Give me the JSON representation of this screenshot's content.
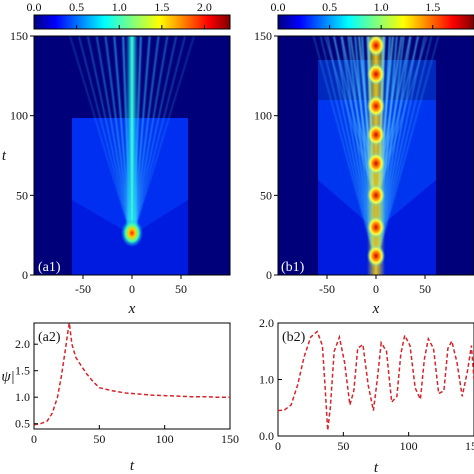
{
  "chart_data": [
    {
      "panel": "(a1)",
      "type": "heatmap",
      "xlabel": "x",
      "ylabel": "t",
      "xticks": [
        "-50",
        "0",
        "50"
      ],
      "yticks": [
        "0",
        "50",
        "100",
        "150"
      ],
      "xlim": [
        -100,
        100
      ],
      "ylim": [
        0,
        150
      ],
      "colorbar": {
        "ticks": [
          "0.0",
          "0.5",
          "1.0",
          "1.5",
          "2.0"
        ],
        "range": [
          0,
          2.3
        ],
        "colormap": "jet",
        "placement": "top"
      },
      "features": {
        "central_peak_t": 27,
        "central_peak_value": 2.3,
        "central_beam_value": 1.0,
        "background_value": 0.15,
        "fan_edge_x": 55
      }
    },
    {
      "panel": "(b1)",
      "type": "heatmap",
      "xlabel": "x",
      "ylabel": "t",
      "xticks": [
        "-50",
        "0",
        "50"
      ],
      "yticks": [
        "0",
        "50",
        "100",
        "150"
      ],
      "xlim": [
        -100,
        100
      ],
      "ylim": [
        0,
        150
      ],
      "colorbar": {
        "ticks": [
          "0.0",
          "0.5",
          "1.0",
          "1.5"
        ],
        "range": [
          0,
          1.9
        ],
        "colormap": "jet",
        "placement": "top"
      },
      "features": {
        "breathing_peaks_t": [
          12,
          30,
          50,
          70,
          88,
          106,
          126,
          144
        ],
        "peak_value": 1.9,
        "background_value": 0.15,
        "fan_edge_x": 58
      }
    },
    {
      "panel": "(a2)",
      "type": "line",
      "xlabel": "t",
      "ylabel": "|ψ|",
      "xticks": [
        "0",
        "50",
        "100",
        "150"
      ],
      "yticks": [
        "0.5",
        "1.0",
        "1.5",
        "2.0"
      ],
      "xlim": [
        0,
        150
      ],
      "ylim": [
        0.4,
        2.4
      ],
      "series": [
        {
          "color": "#d8232a",
          "style": "dashed",
          "x": [
            0,
            5,
            10,
            14,
            18,
            21,
            24,
            26,
            27,
            29,
            32,
            36,
            40,
            45,
            50,
            60,
            70,
            80,
            90,
            100,
            110,
            120,
            130,
            140,
            150
          ],
          "y": [
            0.48,
            0.5,
            0.55,
            0.7,
            1.0,
            1.4,
            1.9,
            2.25,
            2.4,
            2.0,
            1.75,
            1.6,
            1.45,
            1.3,
            1.18,
            1.12,
            1.08,
            1.06,
            1.04,
            1.03,
            1.02,
            1.01,
            1.01,
            1.0,
            1.0
          ]
        }
      ]
    },
    {
      "panel": "(b2)",
      "type": "line",
      "xlabel": "t",
      "ylabel": "",
      "xticks": [
        "0",
        "50",
        "100",
        "150"
      ],
      "yticks": [
        "0.0",
        "1.0",
        "2.0"
      ],
      "xlim": [
        0,
        150
      ],
      "ylim": [
        0,
        2.0
      ],
      "series": [
        {
          "color": "#d8232a",
          "style": "dashed",
          "x": [
            0,
            5,
            10,
            15,
            20,
            25,
            30,
            34,
            36,
            38,
            40,
            43,
            47,
            51,
            55,
            58,
            61,
            65,
            69,
            73,
            76,
            79,
            83,
            87,
            91,
            94,
            97,
            101,
            105,
            109,
            112,
            115,
            119,
            123,
            127,
            130,
            133,
            137,
            141,
            145,
            148,
            150
          ],
          "y": [
            0.45,
            0.46,
            0.55,
            0.9,
            1.4,
            1.75,
            1.85,
            1.6,
            0.9,
            0.1,
            0.5,
            1.5,
            1.75,
            1.3,
            0.55,
            0.8,
            1.55,
            1.62,
            0.9,
            0.45,
            1.0,
            1.65,
            1.5,
            0.6,
            0.7,
            1.45,
            1.78,
            1.6,
            0.85,
            0.65,
            1.35,
            1.72,
            1.55,
            0.75,
            0.8,
            1.55,
            1.68,
            1.3,
            0.7,
            1.15,
            1.6,
            1.0
          ]
        }
      ]
    }
  ]
}
